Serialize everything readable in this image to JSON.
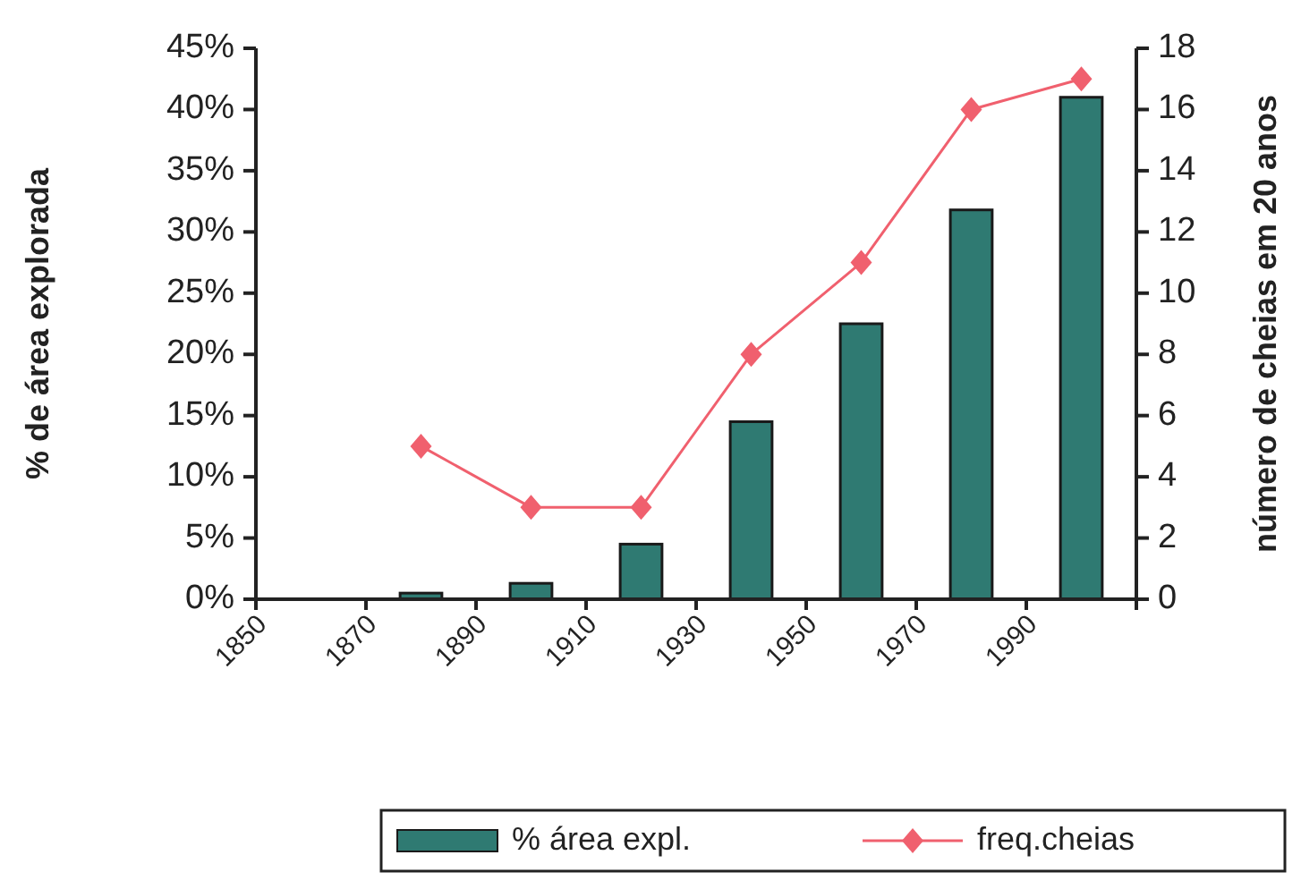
{
  "chart_data": {
    "type": "bar",
    "ylabel": "% de área explorada",
    "y2label": "número de cheias em 20 anos",
    "x": [
      1880,
      1900,
      1920,
      1940,
      1960,
      1980,
      2000
    ],
    "xlim": [
      1850,
      2010
    ],
    "xticks": [
      1850,
      1870,
      1890,
      1910,
      1930,
      1950,
      1970,
      1990,
      {
        "value": 2010,
        "label": null
      }
    ],
    "series": [
      {
        "name": "% área expl.",
        "color": "#2f7a72",
        "values": [
          0.5,
          1.3,
          4.5,
          14.5,
          22.5,
          31.8,
          41
        ]
      },
      {
        "type": "line",
        "name": "freq.cheias",
        "color": "#f0606e",
        "axis": "y2",
        "marker": "diamond",
        "values": [
          5,
          3,
          3,
          8,
          11,
          16,
          17
        ]
      }
    ],
    "ylim": [
      0,
      45
    ],
    "yticks": [
      {
        "value": 0,
        "label": "0%"
      },
      {
        "value": 5,
        "label": "5%"
      },
      {
        "value": 10,
        "label": "10%"
      },
      {
        "value": 15,
        "label": "15%"
      },
      {
        "value": 20,
        "label": "20%"
      },
      {
        "value": 25,
        "label": "25%"
      },
      {
        "value": 30,
        "label": "30%"
      },
      {
        "value": 35,
        "label": "35%"
      },
      {
        "value": 40,
        "label": "40%"
      },
      {
        "value": 45,
        "label": "45%"
      }
    ],
    "y2lim": [
      0,
      18
    ],
    "y2ticks": [
      0,
      2,
      4,
      6,
      8,
      10,
      12,
      14,
      16,
      18
    ],
    "grid": false,
    "legend": "bottom"
  }
}
